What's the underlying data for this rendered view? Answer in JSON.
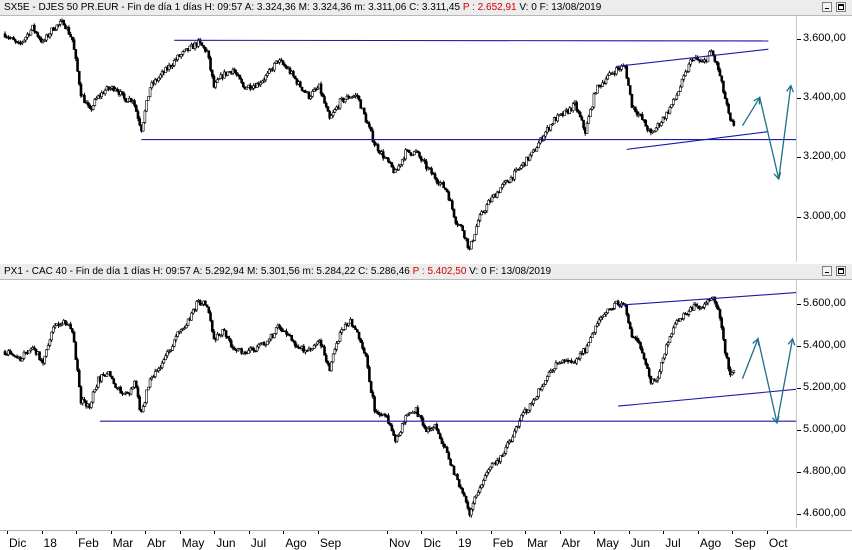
{
  "panel1": {
    "header": {
      "symbol": "SX5E - DJES 50 PR.EUR - Fin de día 1 días",
      "hour": "H: 09:57",
      "open": "A: 3.324,36",
      "high": "M: 3.324,36",
      "low": "m: 3.311,06",
      "close": "C: 3.311,45",
      "prev": "P : 2.652,91",
      "volume": "V: 0",
      "date": "F: 13/08/2019"
    }
  },
  "panel2": {
    "header": {
      "symbol": "PX1 - CAC 40 - Fin de día 1 días",
      "hour": "H: 09:57",
      "open": "A: 5.292,94",
      "high": "M: 5.301,56",
      "low": "m: 5.284,22",
      "close": "C: 5.286,46",
      "prev": "P : 5.402,50",
      "volume": "V: 0",
      "date": "F: 13/08/2019"
    }
  },
  "colors": {
    "price": "#000000",
    "trendline": "#1a1aa8",
    "projection": "#1f6f8b",
    "prev_value": "#d00000"
  },
  "chart_data": [
    {
      "type": "candlestick-line",
      "name": "SX5E",
      "ylim": [
        2850,
        3680
      ],
      "yticks": [
        3000,
        3200,
        3400,
        3600
      ],
      "ytick_labels": [
        "3.000,00",
        "3.200,00",
        "3.400,00",
        "3.600,00"
      ],
      "x_unit": "months since 2017-12-01",
      "x_range": [
        0,
        22.9
      ],
      "series": [
        {
          "values": [
            [
              0,
              3620
            ],
            [
              0.4,
              3580
            ],
            [
              0.8,
              3640
            ],
            [
              1.1,
              3590
            ],
            [
              1.4,
              3640
            ],
            [
              1.7,
              3660
            ],
            [
              1.95,
              3600
            ],
            [
              2.2,
              3420
            ],
            [
              2.45,
              3360
            ],
            [
              2.65,
              3400
            ],
            [
              2.9,
              3430
            ],
            [
              3.2,
              3440
            ],
            [
              3.45,
              3400
            ],
            [
              3.7,
              3400
            ],
            [
              3.95,
              3300
            ],
            [
              4.2,
              3440
            ],
            [
              4.6,
              3490
            ],
            [
              5.0,
              3540
            ],
            [
              5.35,
              3570
            ],
            [
              5.6,
              3590
            ],
            [
              5.85,
              3560
            ],
            [
              6.05,
              3440
            ],
            [
              6.3,
              3480
            ],
            [
              6.6,
              3500
            ],
            [
              6.9,
              3440
            ],
            [
              7.3,
              3450
            ],
            [
              7.6,
              3480
            ],
            [
              7.9,
              3530
            ],
            [
              8.2,
              3500
            ],
            [
              8.5,
              3450
            ],
            [
              8.8,
              3410
            ],
            [
              9.1,
              3440
            ],
            [
              9.4,
              3330
            ],
            [
              9.7,
              3390
            ],
            [
              10.0,
              3410
            ],
            [
              10.2,
              3410
            ],
            [
              10.45,
              3330
            ],
            [
              10.7,
              3250
            ],
            [
              11.0,
              3200
            ],
            [
              11.3,
              3150
            ],
            [
              11.6,
              3220
            ],
            [
              11.9,
              3220
            ],
            [
              12.2,
              3170
            ],
            [
              12.5,
              3130
            ],
            [
              12.8,
              3090
            ],
            [
              13.05,
              2990
            ],
            [
              13.25,
              2960
            ],
            [
              13.45,
              2890
            ],
            [
              13.7,
              2990
            ],
            [
              14.0,
              3050
            ],
            [
              14.35,
              3100
            ],
            [
              14.7,
              3140
            ],
            [
              15.0,
              3180
            ],
            [
              15.3,
              3220
            ],
            [
              15.6,
              3280
            ],
            [
              15.9,
              3330
            ],
            [
              16.2,
              3350
            ],
            [
              16.5,
              3380
            ],
            [
              16.8,
              3290
            ],
            [
              17.1,
              3430
            ],
            [
              17.4,
              3470
            ],
            [
              17.7,
              3500
            ],
            [
              17.95,
              3510
            ],
            [
              18.15,
              3380
            ],
            [
              18.4,
              3340
            ],
            [
              18.7,
              3280
            ],
            [
              18.9,
              3310
            ],
            [
              19.15,
              3350
            ],
            [
              19.4,
              3400
            ],
            [
              19.65,
              3470
            ],
            [
              19.9,
              3540
            ],
            [
              20.2,
              3520
            ],
            [
              20.45,
              3560
            ],
            [
              20.65,
              3500
            ],
            [
              20.85,
              3400
            ],
            [
              21.0,
              3320
            ],
            [
              21.15,
              3311
            ]
          ]
        }
      ],
      "trendlines": [
        {
          "from": [
            4.9,
            3598
          ],
          "to": [
            22.1,
            3596
          ]
        },
        {
          "from": [
            3.95,
            3263
          ],
          "to": [
            22.9,
            3263
          ]
        },
        {
          "from": [
            17.7,
            3510
          ],
          "to": [
            22.1,
            3568
          ]
        },
        {
          "from": [
            18.0,
            3230
          ],
          "to": [
            22.1,
            3290
          ]
        }
      ],
      "projections": [
        {
          "points": [
            [
              21.35,
              3310
            ],
            [
              21.85,
              3405
            ],
            [
              22.4,
              3130
            ],
            [
              22.75,
              3445
            ]
          ]
        }
      ]
    },
    {
      "type": "candlestick-line",
      "name": "PX1",
      "ylim": [
        4540,
        5720
      ],
      "yticks": [
        4600,
        4800,
        5000,
        5200,
        5400,
        5600
      ],
      "ytick_labels": [
        "4.600,00",
        "4.800,00",
        "5.000,00",
        "5.200,00",
        "5.400,00",
        "5.600,00"
      ],
      "x_unit": "months since 2017-12-01",
      "x_range": [
        0,
        22.9
      ],
      "series": [
        {
          "values": [
            [
              0,
              5380
            ],
            [
              0.4,
              5340
            ],
            [
              0.8,
              5400
            ],
            [
              1.1,
              5330
            ],
            [
              1.4,
              5500
            ],
            [
              1.7,
              5520
            ],
            [
              1.95,
              5480
            ],
            [
              2.2,
              5150
            ],
            [
              2.45,
              5120
            ],
            [
              2.7,
              5250
            ],
            [
              3.0,
              5270
            ],
            [
              3.3,
              5200
            ],
            [
              3.55,
              5180
            ],
            [
              3.75,
              5230
            ],
            [
              3.95,
              5080
            ],
            [
              4.2,
              5250
            ],
            [
              4.6,
              5340
            ],
            [
              5.0,
              5460
            ],
            [
              5.35,
              5540
            ],
            [
              5.6,
              5620
            ],
            [
              5.85,
              5600
            ],
            [
              6.05,
              5430
            ],
            [
              6.3,
              5480
            ],
            [
              6.6,
              5400
            ],
            [
              6.9,
              5380
            ],
            [
              7.3,
              5400
            ],
            [
              7.6,
              5430
            ],
            [
              7.9,
              5490
            ],
            [
              8.2,
              5460
            ],
            [
              8.5,
              5400
            ],
            [
              8.8,
              5380
            ],
            [
              9.1,
              5440
            ],
            [
              9.4,
              5300
            ],
            [
              9.7,
              5470
            ],
            [
              10.0,
              5520
            ],
            [
              10.2,
              5460
            ],
            [
              10.45,
              5350
            ],
            [
              10.7,
              5100
            ],
            [
              11.0,
              5080
            ],
            [
              11.3,
              4960
            ],
            [
              11.6,
              5060
            ],
            [
              11.9,
              5100
            ],
            [
              12.2,
              5010
            ],
            [
              12.5,
              5020
            ],
            [
              12.8,
              4890
            ],
            [
              13.05,
              4780
            ],
            [
              13.25,
              4720
            ],
            [
              13.45,
              4610
            ],
            [
              13.7,
              4720
            ],
            [
              14.0,
              4820
            ],
            [
              14.35,
              4880
            ],
            [
              14.7,
              4970
            ],
            [
              15.0,
              5080
            ],
            [
              15.3,
              5150
            ],
            [
              15.6,
              5230
            ],
            [
              15.9,
              5310
            ],
            [
              16.2,
              5330
            ],
            [
              16.5,
              5330
            ],
            [
              16.8,
              5390
            ],
            [
              17.1,
              5500
            ],
            [
              17.4,
              5560
            ],
            [
              17.7,
              5620
            ],
            [
              17.95,
              5590
            ],
            [
              18.15,
              5460
            ],
            [
              18.4,
              5400
            ],
            [
              18.7,
              5240
            ],
            [
              18.9,
              5260
            ],
            [
              19.15,
              5400
            ],
            [
              19.4,
              5500
            ],
            [
              19.65,
              5560
            ],
            [
              19.9,
              5590
            ],
            [
              20.2,
              5600
            ],
            [
              20.45,
              5640
            ],
            [
              20.65,
              5590
            ],
            [
              20.85,
              5380
            ],
            [
              21.0,
              5260
            ],
            [
              21.15,
              5286
            ]
          ]
        }
      ],
      "trendlines": [
        {
          "from": [
            17.75,
            5600
          ],
          "to": [
            22.9,
            5660
          ]
        },
        {
          "from": [
            2.75,
            5048
          ],
          "to": [
            22.9,
            5048
          ]
        },
        {
          "from": [
            17.75,
            5120
          ],
          "to": [
            22.9,
            5200
          ]
        }
      ],
      "projections": [
        {
          "points": [
            [
              21.35,
              5250
            ],
            [
              21.8,
              5440
            ],
            [
              22.35,
              5040
            ],
            [
              22.8,
              5440
            ]
          ]
        }
      ]
    }
  ],
  "xaxis": {
    "labels": [
      {
        "text": "Dic",
        "m": 0.0
      },
      {
        "text": "18",
        "m": 1.0
      },
      {
        "text": "Feb",
        "m": 2.0
      },
      {
        "text": "Mar",
        "m": 3.0
      },
      {
        "text": "Abr",
        "m": 4.0
      },
      {
        "text": "May",
        "m": 5.0
      },
      {
        "text": "Jun",
        "m": 6.0
      },
      {
        "text": "Jul",
        "m": 7.0
      },
      {
        "text": "Ago",
        "m": 8.0
      },
      {
        "text": "Sep",
        "m": 9.0
      },
      {
        "text": "Nov",
        "m": 11.0
      },
      {
        "text": "Dic",
        "m": 12.0
      },
      {
        "text": "19",
        "m": 13.0
      },
      {
        "text": "Feb",
        "m": 14.0
      },
      {
        "text": "Mar",
        "m": 15.0
      },
      {
        "text": "Abr",
        "m": 16.0
      },
      {
        "text": "May",
        "m": 17.0
      },
      {
        "text": "Jun",
        "m": 18.0
      },
      {
        "text": "Jul",
        "m": 19.0
      },
      {
        "text": "Ago",
        "m": 20.0
      },
      {
        "text": "Sep",
        "m": 21.0
      },
      {
        "text": "Oct",
        "m": 22.0
      }
    ]
  }
}
